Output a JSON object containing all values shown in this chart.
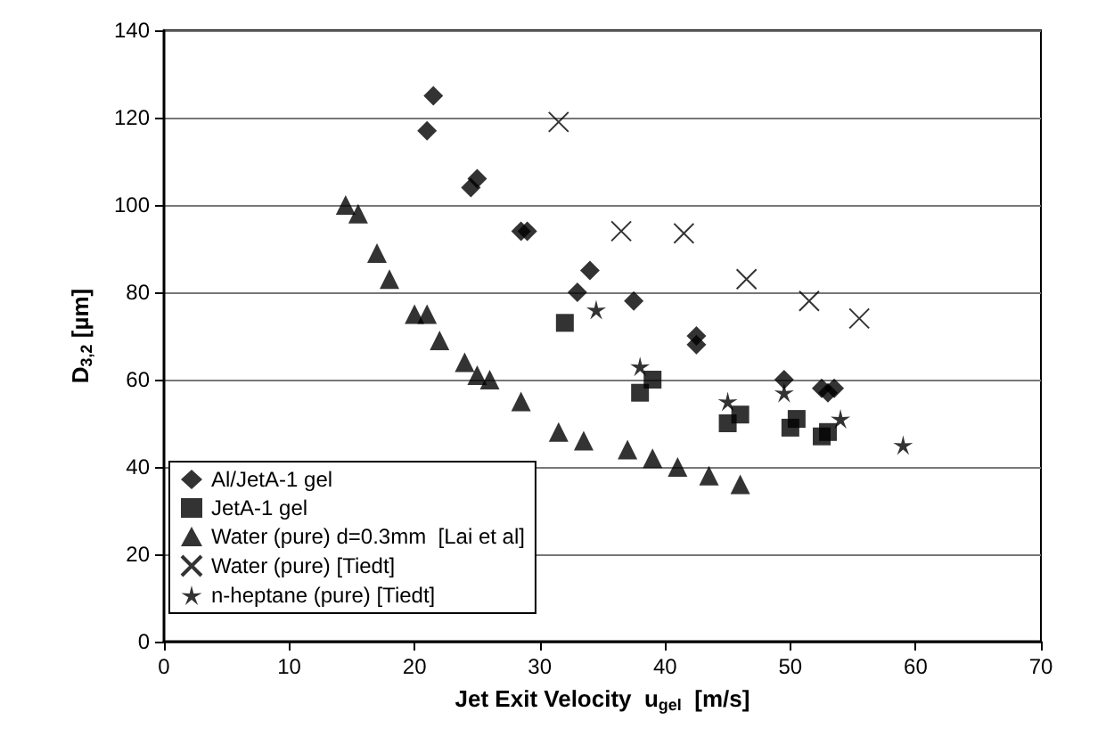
{
  "chart_data": {
    "type": "scatter",
    "xlabel": "Jet Exit Velocity  u$_{gel}$  [m/s]",
    "ylabel": "D$_{3,2}$ [µm]",
    "xlim": [
      0,
      70
    ],
    "xticks": [
      0,
      10,
      20,
      30,
      40,
      50,
      60,
      70
    ],
    "ylim": [
      0,
      140
    ],
    "yticks": [
      0,
      20,
      40,
      60,
      80,
      100,
      120,
      140
    ],
    "grid": "y",
    "legend": "bottom left",
    "series": [
      {
        "name": "Al/JetA-1 gel",
        "color": "#000000",
        "marker": "diamond",
        "x": [
          21.5,
          21,
          24.5,
          25,
          28.5,
          29,
          33,
          34,
          37.5,
          42.5,
          42.5,
          49.5,
          52.5,
          53,
          53.5
        ],
        "values": [
          125,
          117,
          104,
          106,
          94,
          94,
          80,
          85,
          78,
          70,
          68,
          60,
          58,
          57,
          58
        ]
      },
      {
        "name": "JetA-1 gel",
        "color": "#000000",
        "marker": "square",
        "x": [
          32,
          38,
          39,
          45,
          46,
          50,
          50.5,
          52.5,
          53
        ],
        "values": [
          73,
          57,
          60,
          50,
          52,
          49,
          51,
          47,
          48
        ]
      },
      {
        "name": "Water (pure) d=0.3mm  [Lai et al]",
        "color": "#000000",
        "marker": "triangle",
        "x": [
          14.5,
          15.5,
          17,
          18,
          20,
          21,
          22,
          24,
          25,
          26,
          28.5,
          31.5,
          33.5,
          37,
          39,
          41,
          43.5,
          46
        ],
        "values": [
          100,
          98,
          89,
          83,
          75,
          75,
          69,
          64,
          61,
          60,
          55,
          48,
          46,
          44,
          42,
          40,
          38,
          36
        ]
      },
      {
        "name": "Water (pure) [Tiedt]",
        "color": "#000000",
        "marker": "cross",
        "x": [
          31.5,
          36.5,
          41.5,
          46.5,
          51.5,
          55.5
        ],
        "values": [
          119,
          94,
          93.5,
          83,
          78,
          74
        ]
      },
      {
        "name": "n-heptane (pure) [Tiedt]",
        "color": "#000000",
        "marker": "star",
        "x": [
          34.5,
          38,
          45,
          49.5,
          54,
          59
        ],
        "values": [
          76,
          63,
          55,
          57,
          51,
          45
        ]
      }
    ]
  }
}
